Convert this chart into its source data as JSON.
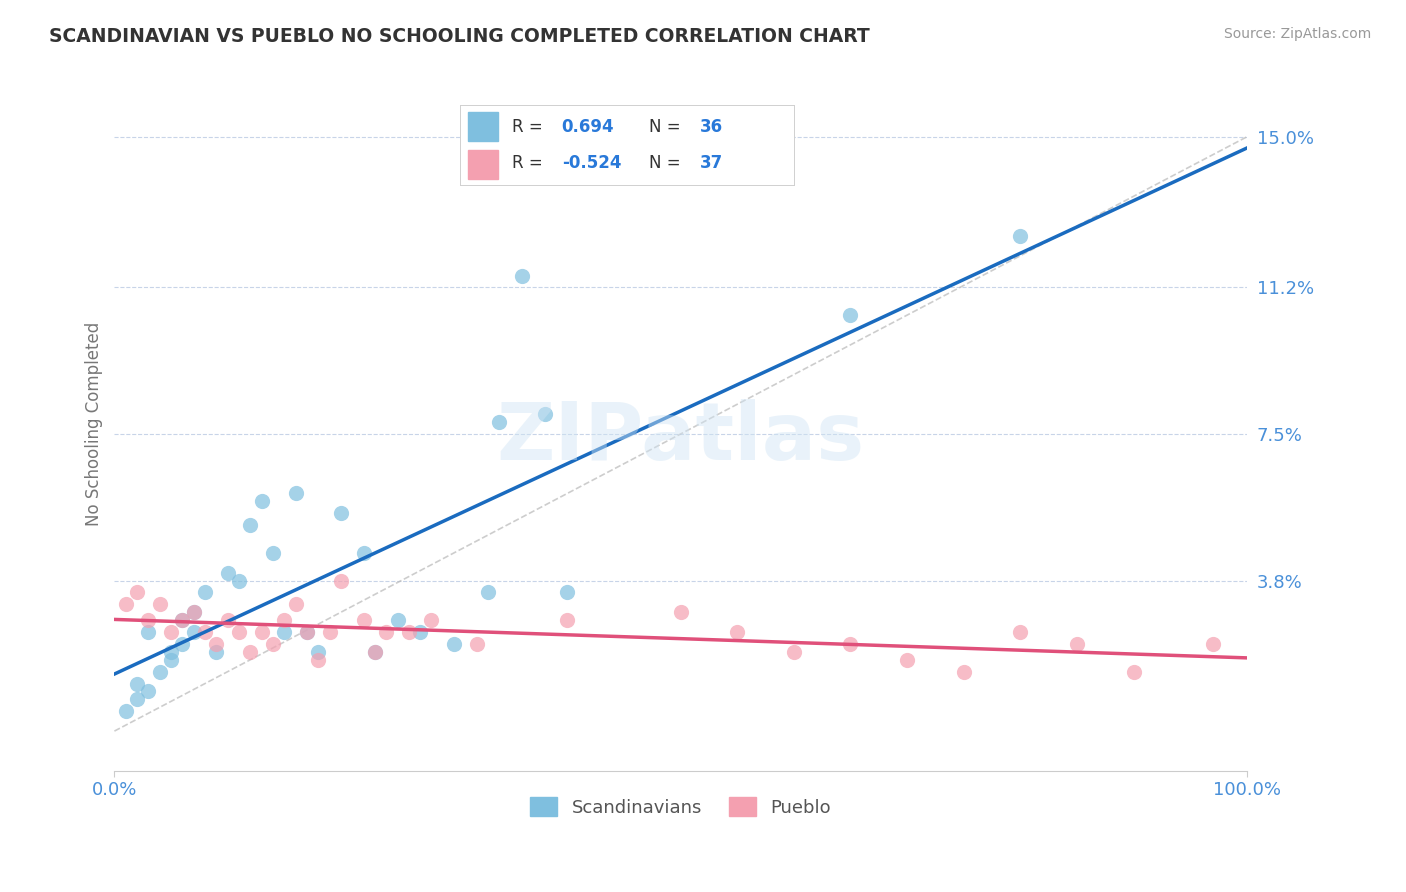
{
  "title": "SCANDINAVIAN VS PUEBLO NO SCHOOLING COMPLETED CORRELATION CHART",
  "source": "Source: ZipAtlas.com",
  "ylabel": "No Schooling Completed",
  "xlim": [
    0.0,
    100.0
  ],
  "ylim": [
    -1.0,
    16.5
  ],
  "ytick_vals": [
    3.8,
    7.5,
    11.2,
    15.0
  ],
  "ytick_labels": [
    "3.8%",
    "7.5%",
    "11.2%",
    "15.0%"
  ],
  "xtick_vals": [
    0.0,
    100.0
  ],
  "xtick_labels": [
    "0.0%",
    "100.0%"
  ],
  "blue_scatter_color": "#7fbfdf",
  "pink_scatter_color": "#f4a0b0",
  "blue_line_color": "#1a6bbf",
  "pink_line_color": "#e0507a",
  "gray_dash_color": "#b8b8b8",
  "legend_R1": "0.694",
  "legend_N1": "36",
  "legend_R2": "-0.524",
  "legend_N2": "37",
  "label1": "Scandinavians",
  "label2": "Pueblo",
  "watermark_text": "ZIPatlas",
  "background_color": "#ffffff",
  "grid_color": "#c8d4e8",
  "title_color": "#333333",
  "axis_label_color": "#777777",
  "tick_label_color": "#4a90d9",
  "legend_text_color": "#333333",
  "legend_val_color": "#2979d9",
  "scan_x": [
    1,
    2,
    2,
    3,
    3,
    4,
    5,
    5,
    6,
    6,
    7,
    7,
    8,
    9,
    10,
    11,
    12,
    13,
    14,
    15,
    16,
    17,
    18,
    20,
    22,
    23,
    25,
    27,
    30,
    33,
    34,
    36,
    38,
    40,
    65,
    80
  ],
  "scan_y": [
    0.5,
    0.8,
    1.2,
    1.0,
    2.5,
    1.5,
    1.8,
    2.0,
    2.2,
    2.8,
    2.5,
    3.0,
    3.5,
    2.0,
    4.0,
    3.8,
    5.2,
    5.8,
    4.5,
    2.5,
    6.0,
    2.5,
    2.0,
    5.5,
    4.5,
    2.0,
    2.8,
    2.5,
    2.2,
    3.5,
    7.8,
    11.5,
    8.0,
    3.5,
    10.5,
    12.5
  ],
  "pueblo_x": [
    1,
    2,
    3,
    4,
    5,
    6,
    7,
    8,
    9,
    10,
    11,
    12,
    13,
    14,
    15,
    16,
    17,
    18,
    19,
    20,
    22,
    23,
    24,
    26,
    28,
    32,
    40,
    50,
    55,
    60,
    65,
    70,
    75,
    80,
    85,
    90,
    97
  ],
  "pueblo_y": [
    3.2,
    3.5,
    2.8,
    3.2,
    2.5,
    2.8,
    3.0,
    2.5,
    2.2,
    2.8,
    2.5,
    2.0,
    2.5,
    2.2,
    2.8,
    3.2,
    2.5,
    1.8,
    2.5,
    3.8,
    2.8,
    2.0,
    2.5,
    2.5,
    2.8,
    2.2,
    2.8,
    3.0,
    2.5,
    2.0,
    2.2,
    1.8,
    1.5,
    2.5,
    2.2,
    1.5,
    2.2
  ]
}
